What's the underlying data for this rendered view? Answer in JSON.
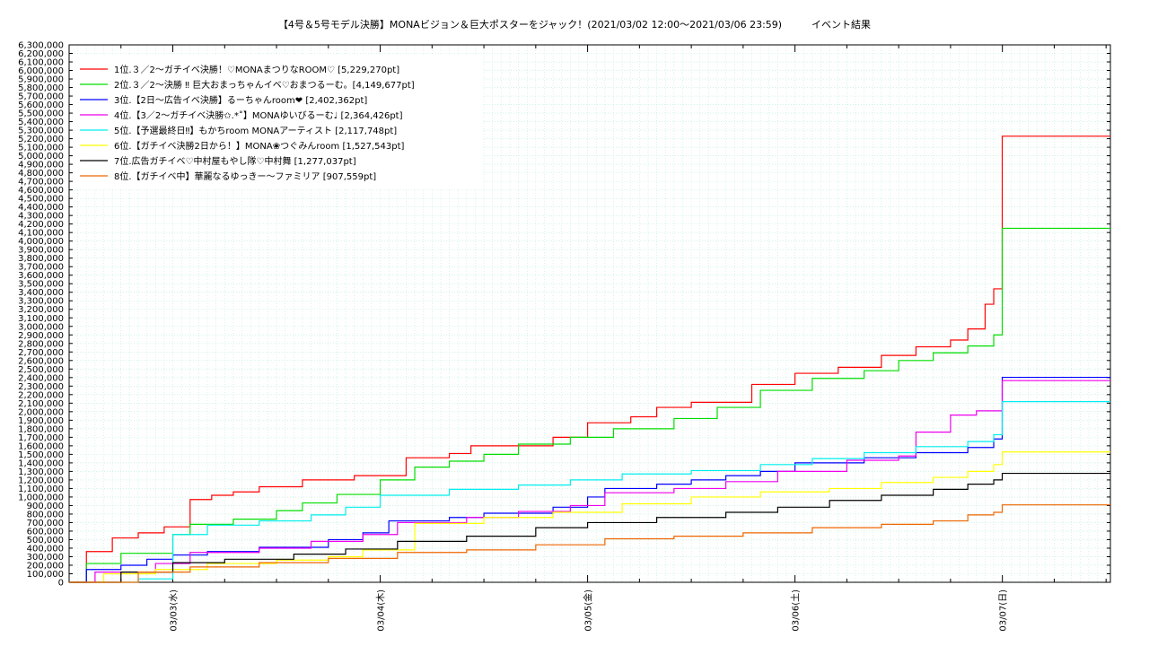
{
  "chart_data": {
    "type": "line",
    "title": "【4号＆5号モデル決勝】MONAビジョン＆巨大ポスターをジャック！(2021/03/02 12:00〜2021/03/06 23:59)　　　イベント結果",
    "xlabel": "",
    "ylabel": "",
    "ylim": [
      0,
      6300000
    ],
    "xlim_days": [
      "2021-03-02T12:00",
      "2021-03-07T12:30"
    ],
    "x_ticks": [
      "03/03(水)",
      "03/04(木)",
      "03/05(金)",
      "03/06(土)",
      "03/07(日)"
    ],
    "y_ticks": [
      "0",
      "100,000",
      "200,000",
      "300,000",
      "400,000",
      "500,000",
      "600,000",
      "700,000",
      "800,000",
      "900,000",
      "1,000,000",
      "1,100,000",
      "1,200,000",
      "1,300,000",
      "1,400,000",
      "1,500,000",
      "1,600,000",
      "1,700,000",
      "1,800,000",
      "1,900,000",
      "2,000,000",
      "2,100,000",
      "2,200,000",
      "2,300,000",
      "2,400,000",
      "2,500,000",
      "2,600,000",
      "2,700,000",
      "2,800,000",
      "2,900,000",
      "3,000,000",
      "3,100,000",
      "3,200,000",
      "3,300,000",
      "3,400,000",
      "3,500,000",
      "3,600,000",
      "3,700,000",
      "3,800,000",
      "3,900,000",
      "4,000,000",
      "4,100,000",
      "4,200,000",
      "4,300,000",
      "4,400,000",
      "4,500,000",
      "4,600,000",
      "4,700,000",
      "4,800,000",
      "4,900,000",
      "5,000,000",
      "5,100,000",
      "5,200,000",
      "5,300,000",
      "5,400,000",
      "5,500,000",
      "5,600,000",
      "5,700,000",
      "5,800,000",
      "5,900,000",
      "6,000,000",
      "6,100,000",
      "6,200,000",
      "6,300,000"
    ],
    "grid": true,
    "legend_position": "top-left",
    "series": [
      {
        "name": "1位.３／2〜ガチイベ決勝！♡MONAまつりなROOM♡ [5,229,270pt]",
        "color": "#ff0000",
        "x": [
          "2021-03-02 12:00",
          "2021-03-02 14:00",
          "2021-03-02 17:00",
          "2021-03-02 20:00",
          "2021-03-02 23:00",
          "2021-03-03 02:00",
          "2021-03-03 04:30",
          "2021-03-03 07:00",
          "2021-03-03 10:00",
          "2021-03-03 15:00",
          "2021-03-03 21:00",
          "2021-03-04 03:00",
          "2021-03-04 08:00",
          "2021-03-04 10:30",
          "2021-03-04 20:00",
          "2021-03-05 00:00",
          "2021-03-05 05:00",
          "2021-03-05 08:00",
          "2021-03-05 12:00",
          "2021-03-05 19:00",
          "2021-03-06 00:00",
          "2021-03-06 05:00",
          "2021-03-06 10:00",
          "2021-03-06 14:00",
          "2021-03-06 18:00",
          "2021-03-06 20:00",
          "2021-03-06 22:00",
          "2021-03-06 23:00",
          "2021-03-06 23:59",
          "2021-03-07 12:30"
        ],
        "y": [
          0,
          360000,
          520000,
          580000,
          650000,
          970000,
          1020000,
          1060000,
          1120000,
          1200000,
          1250000,
          1460000,
          1510000,
          1600000,
          1700000,
          1870000,
          1940000,
          2050000,
          2110000,
          2320000,
          2450000,
          2520000,
          2660000,
          2760000,
          2840000,
          2970000,
          3260000,
          3440000,
          5229270,
          5229270
        ]
      },
      {
        "name": "2位.３／2〜決勝 ‼︎ 巨大おまっちゃんイベ♡おまつるーむ。[4,149,677pt]",
        "color": "#00dd00",
        "x": [
          "2021-03-02 12:00",
          "2021-03-02 14:00",
          "2021-03-02 18:00",
          "2021-03-03 00:00",
          "2021-03-03 02:00",
          "2021-03-03 07:00",
          "2021-03-03 12:00",
          "2021-03-03 15:00",
          "2021-03-03 19:00",
          "2021-03-04 00:00",
          "2021-03-04 04:00",
          "2021-03-04 08:00",
          "2021-03-04 12:00",
          "2021-03-04 16:00",
          "2021-03-04 22:00",
          "2021-03-05 03:00",
          "2021-03-05 10:00",
          "2021-03-05 15:00",
          "2021-03-05 20:00",
          "2021-03-06 02:00",
          "2021-03-06 08:00",
          "2021-03-06 12:00",
          "2021-03-06 16:00",
          "2021-03-06 20:00",
          "2021-03-06 23:00",
          "2021-03-06 23:59",
          "2021-03-07 12:30"
        ],
        "y": [
          0,
          220000,
          340000,
          560000,
          680000,
          740000,
          840000,
          930000,
          1030000,
          1200000,
          1350000,
          1420000,
          1500000,
          1620000,
          1700000,
          1800000,
          1920000,
          2050000,
          2250000,
          2390000,
          2480000,
          2600000,
          2690000,
          2770000,
          2900000,
          4149677,
          4149677
        ]
      },
      {
        "name": "3位.【2日〜広告イベ決勝】るーちゃんroom❤︎ [2,402,362pt]",
        "color": "#0000ff",
        "x": [
          "2021-03-02 12:00",
          "2021-03-02 14:00",
          "2021-03-02 18:00",
          "2021-03-02 21:00",
          "2021-03-03 00:00",
          "2021-03-03 04:00",
          "2021-03-03 10:00",
          "2021-03-03 18:00",
          "2021-03-03 22:00",
          "2021-03-04 01:00",
          "2021-03-04 08:00",
          "2021-03-04 12:00",
          "2021-03-04 20:00",
          "2021-03-05 00:00",
          "2021-03-05 02:00",
          "2021-03-05 08:00",
          "2021-03-05 12:00",
          "2021-03-05 16:00",
          "2021-03-05 20:00",
          "2021-03-06 00:00",
          "2021-03-06 08:00",
          "2021-03-06 14:00",
          "2021-03-06 20:00",
          "2021-03-06 23:00",
          "2021-03-06 23:59",
          "2021-03-07 12:30"
        ],
        "y": [
          0,
          150000,
          200000,
          270000,
          320000,
          360000,
          410000,
          500000,
          580000,
          720000,
          760000,
          810000,
          880000,
          1000000,
          1100000,
          1150000,
          1200000,
          1250000,
          1300000,
          1400000,
          1460000,
          1520000,
          1580000,
          1680000,
          2402362,
          2402362
        ]
      },
      {
        "name": "4位.【3／2〜ガチイベ決勝✩.*˚】MONAゆいびるーむ♩ [2,364,426pt]",
        "color": "#ee00ee",
        "x": [
          "2021-03-02 12:00",
          "2021-03-02 15:00",
          "2021-03-02 22:00",
          "2021-03-03 02:00",
          "2021-03-03 10:00",
          "2021-03-03 16:00",
          "2021-03-03 22:00",
          "2021-03-04 02:00",
          "2021-03-04 10:00",
          "2021-03-04 16:00",
          "2021-03-04 22:00",
          "2021-03-05 02:00",
          "2021-03-05 10:00",
          "2021-03-05 16:00",
          "2021-03-05 22:00",
          "2021-03-06 06:00",
          "2021-03-06 12:00",
          "2021-03-06 14:00",
          "2021-03-06 18:00",
          "2021-03-06 21:00",
          "2021-03-06 23:59",
          "2021-03-07 12:30"
        ],
        "y": [
          0,
          120000,
          220000,
          350000,
          400000,
          480000,
          560000,
          700000,
          760000,
          830000,
          900000,
          1050000,
          1100000,
          1180000,
          1300000,
          1430000,
          1480000,
          1760000,
          1960000,
          2010000,
          2364426,
          2364426
        ]
      },
      {
        "name": "5位.【予選最終日‼︎】もかちroom MONAアーティスト [2,117,748pt]",
        "color": "#00eeee",
        "x": [
          "2021-03-02 12:00",
          "2021-03-02 20:00",
          "2021-03-03 00:00",
          "2021-03-03 04:00",
          "2021-03-03 10:00",
          "2021-03-03 16:00",
          "2021-03-03 20:00",
          "2021-03-04 00:00",
          "2021-03-04 08:00",
          "2021-03-04 16:00",
          "2021-03-04 22:00",
          "2021-03-05 04:00",
          "2021-03-05 12:00",
          "2021-03-05 20:00",
          "2021-03-06 02:00",
          "2021-03-06 08:00",
          "2021-03-06 14:00",
          "2021-03-06 20:00",
          "2021-03-06 23:00",
          "2021-03-06 23:59",
          "2021-03-07 12:30"
        ],
        "y": [
          0,
          40000,
          560000,
          670000,
          720000,
          790000,
          880000,
          1020000,
          1090000,
          1140000,
          1200000,
          1270000,
          1310000,
          1380000,
          1450000,
          1520000,
          1590000,
          1650000,
          1730000,
          2117748,
          2117748
        ]
      },
      {
        "name": "6位.【ガチイベ決勝2日から！】MONA❀つぐみんroom [1,527,543pt]",
        "color": "#ffff00",
        "x": [
          "2021-03-02 12:00",
          "2021-03-02 16:00",
          "2021-03-02 22:00",
          "2021-03-03 04:00",
          "2021-03-03 12:00",
          "2021-03-03 18:00",
          "2021-03-03 22:00",
          "2021-03-04 04:00",
          "2021-03-04 12:00",
          "2021-03-04 20:00",
          "2021-03-05 04:00",
          "2021-03-05 12:00",
          "2021-03-05 20:00",
          "2021-03-06 04:00",
          "2021-03-06 10:00",
          "2021-03-06 16:00",
          "2021-03-06 20:00",
          "2021-03-06 23:00",
          "2021-03-06 23:59",
          "2021-03-07 12:30"
        ],
        "y": [
          0,
          100000,
          150000,
          220000,
          260000,
          300000,
          380000,
          690000,
          760000,
          820000,
          920000,
          1000000,
          1060000,
          1100000,
          1170000,
          1230000,
          1300000,
          1380000,
          1527543,
          1527543
        ]
      },
      {
        "name": "7位.広告ガチイベ♡中村屋もやし隊♡中村舞 [1,277,037pt]",
        "color": "#000000",
        "x": [
          "2021-03-02 12:00",
          "2021-03-02 18:00",
          "2021-03-03 00:00",
          "2021-03-03 06:00",
          "2021-03-03 14:00",
          "2021-03-03 20:00",
          "2021-03-04 02:00",
          "2021-03-04 10:00",
          "2021-03-04 18:00",
          "2021-03-05 00:00",
          "2021-03-05 08:00",
          "2021-03-05 16:00",
          "2021-03-05 22:00",
          "2021-03-06 04:00",
          "2021-03-06 10:00",
          "2021-03-06 16:00",
          "2021-03-06 20:00",
          "2021-03-06 23:00",
          "2021-03-06 23:59",
          "2021-03-07 12:30"
        ],
        "y": [
          0,
          120000,
          230000,
          270000,
          330000,
          390000,
          480000,
          540000,
          640000,
          700000,
          760000,
          820000,
          880000,
          960000,
          1020000,
          1090000,
          1150000,
          1200000,
          1277037,
          1277037
        ]
      },
      {
        "name": "8位.【ガチイベ中】華麗なるゆっきー〜ファミリア [907,559pt]",
        "color": "#ee6600",
        "x": [
          "2021-03-02 12:00",
          "2021-03-02 20:00",
          "2021-03-03 02:00",
          "2021-03-03 10:00",
          "2021-03-03 18:00",
          "2021-03-04 02:00",
          "2021-03-04 10:00",
          "2021-03-04 18:00",
          "2021-03-05 02:00",
          "2021-03-05 10:00",
          "2021-03-05 18:00",
          "2021-03-06 02:00",
          "2021-03-06 10:00",
          "2021-03-06 16:00",
          "2021-03-06 20:00",
          "2021-03-06 23:00",
          "2021-03-06 23:59",
          "2021-03-07 12:30"
        ],
        "y": [
          0,
          120000,
          180000,
          230000,
          280000,
          350000,
          380000,
          440000,
          510000,
          540000,
          580000,
          640000,
          680000,
          720000,
          790000,
          820000,
          907559,
          907559
        ]
      }
    ]
  }
}
